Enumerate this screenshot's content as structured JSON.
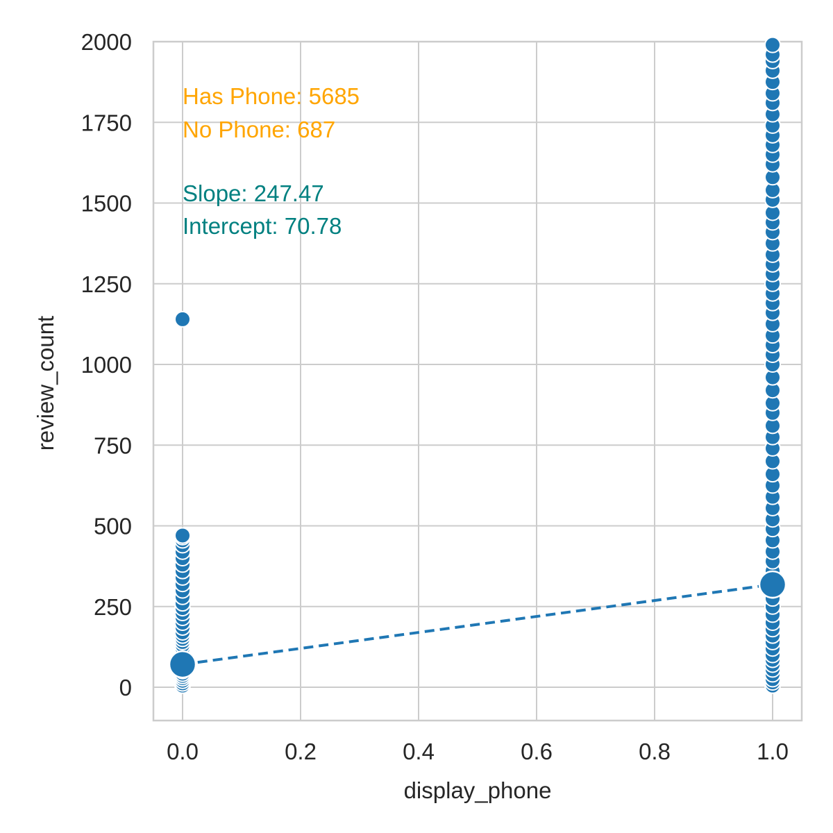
{
  "chart_data": {
    "type": "scatter",
    "xlabel": "display_phone",
    "ylabel": "review_count",
    "xlim": [
      -0.05,
      1.05
    ],
    "ylim": [
      -100,
      2000
    ],
    "x_ticks": [
      0.0,
      0.2,
      0.4,
      0.6,
      0.8,
      1.0
    ],
    "x_tick_labels": [
      "0.0",
      "0.2",
      "0.4",
      "0.6",
      "0.8",
      "1.0"
    ],
    "y_ticks": [
      0,
      250,
      500,
      750,
      1000,
      1250,
      1500,
      1750,
      2000
    ],
    "y_tick_labels": [
      "0",
      "250",
      "500",
      "750",
      "1000",
      "1250",
      "1500",
      "1750",
      "2000"
    ],
    "grid": true,
    "point_color": "#1f77b4",
    "series": [
      {
        "x": 0,
        "y": [
          5,
          12,
          20,
          28,
          35,
          42,
          50,
          58,
          65,
          72,
          80,
          90,
          100,
          110,
          120,
          130,
          140,
          150,
          160,
          170,
          185,
          200,
          215,
          230,
          245,
          260,
          280,
          300,
          320,
          340,
          360,
          380,
          400,
          420,
          440,
          455,
          465,
          470,
          1140
        ]
      },
      {
        "x": 1,
        "y": [
          5,
          15,
          25,
          40,
          55,
          70,
          85,
          100,
          120,
          140,
          160,
          180,
          200,
          225,
          250,
          275,
          300,
          330,
          360,
          390,
          420,
          455,
          490,
          520,
          555,
          590,
          625,
          660,
          700,
          740,
          775,
          810,
          850,
          880,
          920,
          960,
          1000,
          1030,
          1060,
          1090,
          1125,
          1160,
          1190,
          1220,
          1250,
          1280,
          1310,
          1340,
          1375,
          1410,
          1440,
          1470,
          1510,
          1540,
          1580,
          1620,
          1650,
          1680,
          1710,
          1740,
          1775,
          1810,
          1840,
          1875,
          1910,
          1940,
          1960,
          1990
        ]
      }
    ],
    "means": [
      {
        "x": 0,
        "y": 70.78
      },
      {
        "x": 1,
        "y": 318.25
      }
    ],
    "regression": {
      "slope": 247.47,
      "intercept": 70.78,
      "color": "#1f77b4",
      "style": "dashed"
    },
    "annotations": {
      "counts": {
        "color": "#ffa500",
        "lines": [
          "Has Phone: 5685",
          "No Phone: 687"
        ]
      },
      "stats": {
        "color": "#008080",
        "lines": [
          "Slope: 247.47",
          "Intercept: 70.78"
        ]
      }
    }
  }
}
